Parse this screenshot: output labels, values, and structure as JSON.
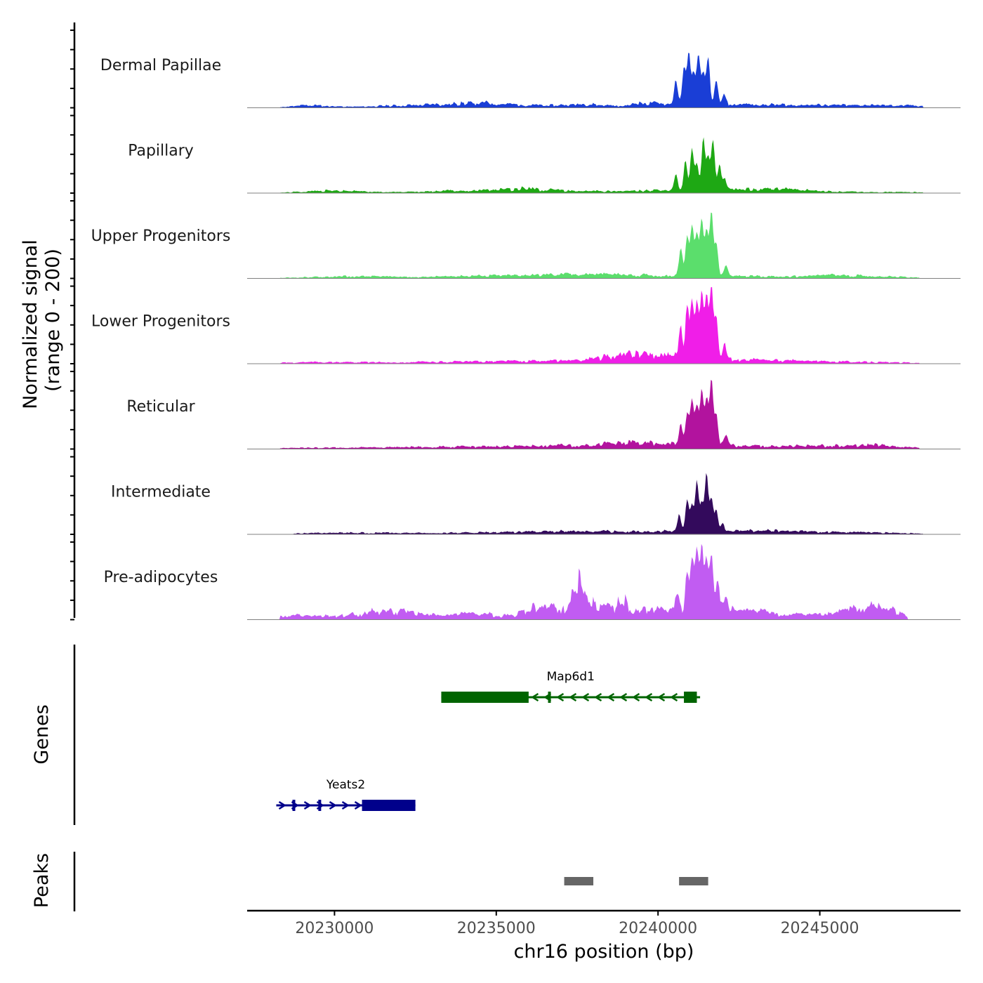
{
  "chart_data": {
    "type": "area",
    "title": "",
    "xlabel": "chr16 position (bp)",
    "ylabel_line1": "Normalized signal",
    "ylabel_line2": "(range 0 - 200)",
    "xlim": [
      20227300,
      20249350
    ],
    "ylim": [
      0,
      200
    ],
    "x_ticks": [
      20230000,
      20235000,
      20240000,
      20245000
    ],
    "x_tick_labels": [
      "20230000",
      "20235000",
      "20240000",
      "20245000"
    ],
    "tracks": [
      {
        "name": "Dermal Papillae",
        "color": "#1a3ed6",
        "background": [
          [
            20228300,
            2
          ],
          [
            20229200,
            12
          ],
          [
            20230500,
            4
          ],
          [
            20234600,
            22
          ],
          [
            20236500,
            9
          ],
          [
            20237600,
            18
          ],
          [
            20238900,
            8
          ],
          [
            20239400,
            20
          ],
          [
            20243900,
            14
          ],
          [
            20245300,
            12
          ],
          [
            20248200,
            10
          ]
        ],
        "peaks": [
          [
            20240550,
            80
          ],
          [
            20240800,
            130
          ],
          [
            20240950,
            182
          ],
          [
            20241100,
            110
          ],
          [
            20241250,
            175
          ],
          [
            20241400,
            105
          ],
          [
            20241550,
            168
          ],
          [
            20241800,
            80
          ],
          [
            20242050,
            35
          ]
        ]
      },
      {
        "name": "Papillary",
        "color": "#1ea814",
        "background": [
          [
            20228300,
            2
          ],
          [
            20229800,
            11
          ],
          [
            20232100,
            4
          ],
          [
            20235900,
            20
          ],
          [
            20237500,
            8
          ],
          [
            20239300,
            10
          ],
          [
            20243900,
            18
          ],
          [
            20245500,
            6
          ],
          [
            20248200,
            4
          ]
        ],
        "peaks": [
          [
            20240550,
            60
          ],
          [
            20240850,
            110
          ],
          [
            20241050,
            150
          ],
          [
            20241200,
            95
          ],
          [
            20241400,
            185
          ],
          [
            20241550,
            120
          ],
          [
            20241700,
            178
          ],
          [
            20241900,
            90
          ],
          [
            20242050,
            40
          ]
        ]
      },
      {
        "name": "Upper Progenitors",
        "color": "#5bde6c",
        "background": [
          [
            20228300,
            2
          ],
          [
            20230300,
            10
          ],
          [
            20232600,
            6
          ],
          [
            20234500,
            12
          ],
          [
            20236000,
            14
          ],
          [
            20237200,
            18
          ],
          [
            20239200,
            16
          ],
          [
            20243900,
            8
          ],
          [
            20245400,
            16
          ],
          [
            20248100,
            4
          ]
        ],
        "peaks": [
          [
            20240700,
            100
          ],
          [
            20240900,
            140
          ],
          [
            20241050,
            180
          ],
          [
            20241200,
            155
          ],
          [
            20241350,
            200
          ],
          [
            20241500,
            160
          ],
          [
            20241650,
            230
          ],
          [
            20241800,
            120
          ],
          [
            20242100,
            40
          ]
        ]
      },
      {
        "name": "Lower Progenitors",
        "color": "#f01ee8",
        "background": [
          [
            20228300,
            4
          ],
          [
            20229500,
            8
          ],
          [
            20231800,
            6
          ],
          [
            20234000,
            10
          ],
          [
            20236200,
            12
          ],
          [
            20237600,
            14
          ],
          [
            20239200,
            48
          ],
          [
            20242000,
            20
          ],
          [
            20244000,
            14
          ],
          [
            20246300,
            8
          ],
          [
            20248100,
            4
          ]
        ],
        "peaks": [
          [
            20240700,
            110
          ],
          [
            20240900,
            180
          ],
          [
            20241050,
            210
          ],
          [
            20241200,
            195
          ],
          [
            20241350,
            240
          ],
          [
            20241500,
            220
          ],
          [
            20241650,
            265
          ],
          [
            20241800,
            150
          ],
          [
            20242050,
            55
          ]
        ]
      },
      {
        "name": "Reticular",
        "color": "#b2139e",
        "background": [
          [
            20228300,
            4
          ],
          [
            20229600,
            6
          ],
          [
            20231500,
            8
          ],
          [
            20233900,
            10
          ],
          [
            20235500,
            12
          ],
          [
            20237600,
            18
          ],
          [
            20239200,
            28
          ],
          [
            20243900,
            12
          ],
          [
            20246700,
            18
          ],
          [
            20248100,
            6
          ]
        ],
        "peaks": [
          [
            20240700,
            70
          ],
          [
            20240900,
            115
          ],
          [
            20241050,
            155
          ],
          [
            20241200,
            140
          ],
          [
            20241350,
            200
          ],
          [
            20241500,
            160
          ],
          [
            20241650,
            230
          ],
          [
            20241800,
            110
          ],
          [
            20242100,
            35
          ]
        ]
      },
      {
        "name": "Intermediate",
        "color": "#330a5c",
        "background": [
          [
            20228700,
            4
          ],
          [
            20230200,
            7
          ],
          [
            20233000,
            6
          ],
          [
            20235200,
            9
          ],
          [
            20237600,
            15
          ],
          [
            20239200,
            14
          ],
          [
            20243900,
            16
          ],
          [
            20245800,
            10
          ],
          [
            20248200,
            4
          ]
        ],
        "peaks": [
          [
            20240650,
            55
          ],
          [
            20240900,
            110
          ],
          [
            20241050,
            95
          ],
          [
            20241200,
            175
          ],
          [
            20241350,
            105
          ],
          [
            20241500,
            210
          ],
          [
            20241650,
            115
          ],
          [
            20241800,
            80
          ],
          [
            20242000,
            30
          ]
        ]
      },
      {
        "name": "Pre-adipocytes",
        "color": "#c15cf2",
        "background": [
          [
            20228300,
            20
          ],
          [
            20229600,
            14
          ],
          [
            20231000,
            30
          ],
          [
            20231400,
            45
          ],
          [
            20232300,
            30
          ],
          [
            20233200,
            20
          ],
          [
            20234700,
            25
          ],
          [
            20235500,
            15
          ],
          [
            20236200,
            55
          ],
          [
            20237200,
            60
          ],
          [
            20237600,
            170
          ],
          [
            20237900,
            70
          ],
          [
            20238500,
            50
          ],
          [
            20238900,
            90
          ],
          [
            20239200,
            30
          ],
          [
            20239800,
            45
          ],
          [
            20242800,
            40
          ],
          [
            20244000,
            20
          ],
          [
            20245200,
            25
          ],
          [
            20246600,
            55
          ],
          [
            20247500,
            35
          ],
          [
            20247700,
            10
          ]
        ],
        "peaks": [
          [
            20240600,
            60
          ],
          [
            20240900,
            130
          ],
          [
            20241050,
            185
          ],
          [
            20241200,
            220
          ],
          [
            20241350,
            230
          ],
          [
            20241500,
            190
          ],
          [
            20241650,
            210
          ],
          [
            20241850,
            120
          ],
          [
            20242100,
            50
          ]
        ]
      }
    ],
    "genes_label": "Genes",
    "genes": [
      {
        "name": "Map6d1",
        "color": "#006400",
        "strand": "-",
        "start": 20233300,
        "end": 20241300,
        "thick_blocks": [
          [
            20233300,
            20236000
          ],
          [
            20236600,
            20236650
          ],
          [
            20240800,
            20241200
          ]
        ]
      },
      {
        "name": "Yeats2",
        "color": "#00008b",
        "strand": "+",
        "start": 20228200,
        "end": 20232500,
        "thick_blocks": [
          [
            20228700,
            20228750
          ],
          [
            20229500,
            20229550
          ],
          [
            20230850,
            20232500
          ]
        ]
      }
    ],
    "peaks_label": "Peaks",
    "peak_color": "#666666",
    "peak_regions": [
      [
        20237100,
        20238000
      ],
      [
        20240650,
        20241550
      ]
    ]
  }
}
